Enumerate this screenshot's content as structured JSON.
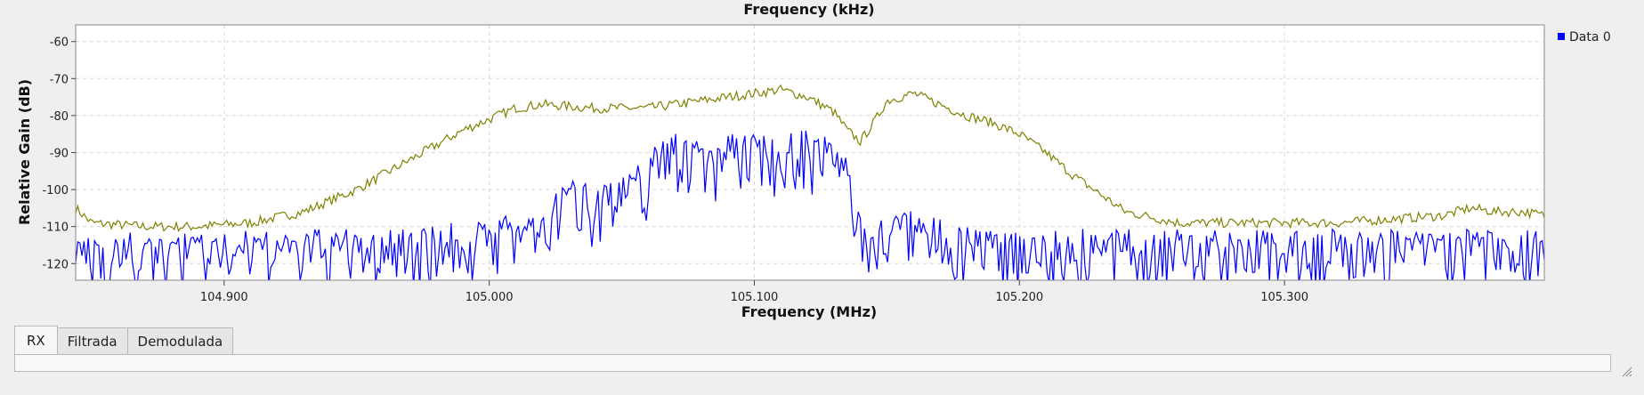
{
  "chart_data": {
    "type": "line",
    "top_axis_label": "Frequency (kHz)",
    "xlabel": "Frequency (MHz)",
    "ylabel": "Relative Gain (dB)",
    "xlim": [
      104.844,
      105.398
    ],
    "ylim": [
      -124.5,
      -55.5
    ],
    "x_ticks": [
      104.9,
      105.0,
      105.1,
      105.2,
      105.3
    ],
    "x_tick_labels": [
      "104.900",
      "105.000",
      "105.100",
      "105.200",
      "105.300"
    ],
    "y_ticks": [
      -60,
      -70,
      -80,
      -90,
      -100,
      -110,
      -120
    ],
    "y_tick_labels": [
      "-60",
      "-70",
      "-80",
      "-90",
      "-100",
      "-110",
      "-120"
    ],
    "grid": true,
    "legend": {
      "placement": "right",
      "entries": [
        {
          "label": "Data 0",
          "color": "#0000ff"
        }
      ]
    },
    "series": [
      {
        "name": "Data 0",
        "color": "#0000ff",
        "x": [
          104.844,
          104.85,
          104.86,
          104.87,
          104.88,
          104.89,
          104.9,
          104.91,
          104.92,
          104.93,
          104.94,
          104.95,
          104.96,
          104.97,
          104.98,
          104.99,
          105.0,
          105.01,
          105.02,
          105.025,
          105.03,
          105.04,
          105.05,
          105.06,
          105.065,
          105.07,
          105.08,
          105.09,
          105.1,
          105.11,
          105.12,
          105.13,
          105.135,
          105.14,
          105.145,
          105.15,
          105.16,
          105.17,
          105.18,
          105.19,
          105.2,
          105.22,
          105.24,
          105.26,
          105.28,
          105.3,
          105.32,
          105.34,
          105.36,
          105.38,
          105.398
        ],
        "y": [
          -118,
          -118,
          -118,
          -118,
          -118,
          -117,
          -117,
          -117,
          -117,
          -117,
          -117,
          -117,
          -117,
          -116,
          -116,
          -115,
          -114,
          -113,
          -111,
          -106,
          -103,
          -104,
          -103,
          -97,
          -92,
          -90,
          -92,
          -91,
          -90,
          -92,
          -90,
          -92,
          -97,
          -112,
          -118,
          -111,
          -112,
          -114,
          -116,
          -116,
          -117,
          -117,
          -117,
          -117,
          -117,
          -117,
          -117,
          -117,
          -117,
          -117,
          -117
        ]
      },
      {
        "name": "",
        "color": "#808000",
        "x": [
          104.844,
          104.85,
          104.87,
          104.89,
          104.91,
          104.93,
          104.94,
          104.95,
          104.96,
          104.97,
          104.98,
          104.99,
          105.0,
          105.01,
          105.02,
          105.04,
          105.06,
          105.08,
          105.1,
          105.11,
          105.12,
          105.13,
          105.135,
          105.14,
          105.145,
          105.15,
          105.16,
          105.17,
          105.18,
          105.19,
          105.2,
          105.21,
          105.22,
          105.23,
          105.24,
          105.26,
          105.28,
          105.3,
          105.32,
          105.34,
          105.36,
          105.37,
          105.38,
          105.39,
          105.398
        ],
        "y": [
          -105,
          -109,
          -110,
          -110,
          -109,
          -106,
          -103,
          -100,
          -96,
          -92,
          -88,
          -84,
          -81,
          -78,
          -77,
          -78,
          -78,
          -76,
          -74,
          -73,
          -75,
          -79,
          -84,
          -87,
          -82,
          -76,
          -74,
          -77,
          -80,
          -82,
          -85,
          -90,
          -96,
          -101,
          -106,
          -109,
          -109,
          -109,
          -109,
          -108,
          -107,
          -105,
          -106,
          -106,
          -107
        ]
      }
    ]
  },
  "tabs": [
    {
      "label": "RX",
      "active": true
    },
    {
      "label": "Filtrada",
      "active": false
    },
    {
      "label": "Demodulada",
      "active": false
    }
  ]
}
